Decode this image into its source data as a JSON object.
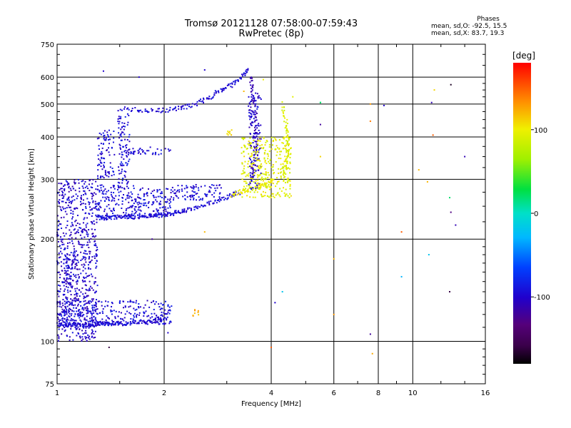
{
  "chart_data": {
    "type": "scatter",
    "title": "Tromsø 20121128 07:58:00-07:59:43",
    "subtitle": "RwPretec (8p)",
    "xlabel": "Frequency [MHz]",
    "ylabel": "Stationary phase Virtual Height [km]",
    "x_scale": "log",
    "y_scale": "log",
    "xlim": [
      1,
      16
    ],
    "ylim": [
      75,
      750
    ],
    "x_ticks": [
      1,
      2,
      4,
      6,
      8,
      10,
      16
    ],
    "x_tick_labels": [
      "1",
      "2",
      "4",
      "6",
      "8",
      "10",
      "16"
    ],
    "y_ticks": [
      75,
      100,
      200,
      300,
      400,
      500,
      600,
      750
    ],
    "y_tick_labels": [
      "75",
      "100",
      "200",
      "300",
      "400",
      "500",
      "600",
      "750"
    ],
    "grid": true,
    "stats": {
      "heading": "Phases",
      "line_o": "mean, sd,O: -92.5, 15.5",
      "line_x": "mean, sd,X: 83.7, 19.3"
    },
    "colorbar": {
      "label": "[deg]",
      "range": [
        -180,
        180
      ],
      "ticks": [
        100,
        0,
        -100
      ],
      "tick_labels": [
        "100",
        "0",
        "-100"
      ]
    },
    "traces": [
      {
        "name": "",
        "phase_deg": -95,
        "points": [
          [
            1.0,
            112
          ],
          [
            1.05,
            112
          ],
          [
            1.1,
            112
          ],
          [
            1.15,
            112
          ],
          [
            1.2,
            112
          ],
          [
            1.25,
            112
          ],
          [
            1.3,
            113
          ],
          [
            1.35,
            113
          ],
          [
            1.4,
            113
          ],
          [
            1.5,
            113
          ],
          [
            1.6,
            113
          ],
          [
            1.7,
            114
          ],
          [
            1.8,
            114
          ],
          [
            1.9,
            115
          ],
          [
            2.0,
            116
          ]
        ]
      },
      {
        "name": "",
        "phase_deg": -95,
        "points": [
          [
            1.3,
            232
          ],
          [
            1.35,
            231
          ],
          [
            1.4,
            232
          ],
          [
            1.5,
            233
          ],
          [
            1.6,
            233
          ],
          [
            1.7,
            233
          ],
          [
            1.8,
            234
          ],
          [
            1.9,
            235
          ],
          [
            2.0,
            236
          ],
          [
            2.1,
            238
          ],
          [
            2.2,
            240
          ],
          [
            2.3,
            243
          ],
          [
            2.5,
            248
          ],
          [
            2.7,
            255
          ],
          [
            2.9,
            263
          ],
          [
            3.1,
            270
          ],
          [
            3.25,
            275
          ]
        ]
      },
      {
        "name": "",
        "phase_deg": 100,
        "points": [
          [
            3.1,
            270
          ],
          [
            3.3,
            276
          ],
          [
            3.5,
            280
          ],
          [
            3.7,
            285
          ],
          [
            3.9,
            290
          ],
          [
            4.05,
            298
          ]
        ]
      },
      {
        "name": "",
        "phase_deg": -95,
        "points": [
          [
            1.5,
            485
          ],
          [
            1.7,
            480
          ],
          [
            1.9,
            478
          ],
          [
            2.1,
            482
          ],
          [
            2.3,
            490
          ],
          [
            2.5,
            505
          ],
          [
            2.7,
            525
          ],
          [
            2.9,
            550
          ],
          [
            3.1,
            570
          ],
          [
            3.3,
            600
          ],
          [
            3.45,
            640
          ]
        ]
      },
      {
        "name": "",
        "phase_deg": -110,
        "points": [
          [
            3.5,
            600
          ],
          [
            3.55,
            540
          ],
          [
            3.6,
            460
          ],
          [
            3.62,
            400
          ],
          [
            3.6,
            350
          ],
          [
            3.55,
            310
          ],
          [
            3.5,
            290
          ]
        ]
      },
      {
        "name": "",
        "phase_deg": 90,
        "points": [
          [
            4.3,
            500
          ],
          [
            4.4,
            440
          ],
          [
            4.45,
            400
          ],
          [
            4.45,
            360
          ],
          [
            4.4,
            330
          ],
          [
            4.35,
            300
          ]
        ]
      }
    ],
    "clusters": [
      {
        "phase_deg": -100,
        "x": [
          1.0,
          1.3
        ],
        "y": [
          100,
          300
        ]
      },
      {
        "phase_deg": -95,
        "x": [
          1.3,
          1.65
        ],
        "y": [
          230,
          290
        ]
      },
      {
        "phase_deg": -95,
        "x": [
          1.65,
          2.1
        ],
        "y": [
          232,
          285
        ]
      },
      {
        "phase_deg": -95,
        "x": [
          1.0,
          2.1
        ],
        "y": [
          112,
          132
        ]
      },
      {
        "phase_deg": -95,
        "x": [
          1.48,
          1.6
        ],
        "y": [
          280,
          470
        ]
      },
      {
        "phase_deg": -95,
        "x": [
          1.6,
          2.1
        ],
        "y": [
          355,
          375
        ]
      },
      {
        "phase_deg": -95,
        "x": [
          1.3,
          1.45
        ],
        "y": [
          300,
          420
        ]
      },
      {
        "phase_deg": -95,
        "x": [
          2.1,
          2.9
        ],
        "y": [
          260,
          290
        ]
      },
      {
        "phase_deg": -100,
        "x": [
          3.45,
          3.75
        ],
        "y": [
          280,
          540
        ]
      },
      {
        "phase_deg": 95,
        "x": [
          3.3,
          4.55
        ],
        "y": [
          265,
          400
        ]
      },
      {
        "phase_deg": 110,
        "x": [
          3.0,
          3.15
        ],
        "y": [
          405,
          420
        ]
      },
      {
        "phase_deg": 120,
        "x": [
          2.4,
          2.5
        ],
        "y": [
          118,
          124
        ]
      },
      {
        "phase_deg": -100,
        "x": [
          1.05,
          1.15
        ],
        "y": [
          140,
          180
        ]
      }
    ],
    "scattered": [
      {
        "x": 1.35,
        "y": 625,
        "phase_deg": -100
      },
      {
        "x": 1.7,
        "y": 600,
        "phase_deg": -100
      },
      {
        "x": 2.6,
        "y": 630,
        "phase_deg": -100
      },
      {
        "x": 5.5,
        "y": 505,
        "phase_deg": 20
      },
      {
        "x": 5.5,
        "y": 435,
        "phase_deg": -120
      },
      {
        "x": 5.5,
        "y": 350,
        "phase_deg": 110
      },
      {
        "x": 7.6,
        "y": 500,
        "phase_deg": 130
      },
      {
        "x": 7.6,
        "y": 445,
        "phase_deg": 140
      },
      {
        "x": 8.3,
        "y": 495,
        "phase_deg": -100
      },
      {
        "x": 11.5,
        "y": 550,
        "phase_deg": 110
      },
      {
        "x": 11.3,
        "y": 505,
        "phase_deg": -110
      },
      {
        "x": 12.8,
        "y": 570,
        "phase_deg": -170
      },
      {
        "x": 11.4,
        "y": 405,
        "phase_deg": 150
      },
      {
        "x": 14.0,
        "y": 350,
        "phase_deg": -110
      },
      {
        "x": 10.4,
        "y": 320,
        "phase_deg": 120
      },
      {
        "x": 11.0,
        "y": 295,
        "phase_deg": 120
      },
      {
        "x": 12.7,
        "y": 265,
        "phase_deg": 20
      },
      {
        "x": 12.8,
        "y": 240,
        "phase_deg": -130
      },
      {
        "x": 13.2,
        "y": 220,
        "phase_deg": -110
      },
      {
        "x": 9.3,
        "y": 210,
        "phase_deg": 150
      },
      {
        "x": 11.1,
        "y": 180,
        "phase_deg": -20
      },
      {
        "x": 9.3,
        "y": 155,
        "phase_deg": -30
      },
      {
        "x": 12.7,
        "y": 140,
        "phase_deg": -160
      },
      {
        "x": 6.0,
        "y": 175,
        "phase_deg": 120
      },
      {
        "x": 6.0,
        "y": 120,
        "phase_deg": 130
      },
      {
        "x": 7.6,
        "y": 105,
        "phase_deg": -120
      },
      {
        "x": 7.7,
        "y": 92,
        "phase_deg": 125
      },
      {
        "x": 4.3,
        "y": 140,
        "phase_deg": -20
      },
      {
        "x": 4.1,
        "y": 130,
        "phase_deg": -100
      },
      {
        "x": 4.0,
        "y": 96,
        "phase_deg": 150
      },
      {
        "x": 1.4,
        "y": 96,
        "phase_deg": -160
      },
      {
        "x": 2.05,
        "y": 106,
        "phase_deg": -100
      },
      {
        "x": 1.85,
        "y": 200,
        "phase_deg": -120
      },
      {
        "x": 2.6,
        "y": 210,
        "phase_deg": 120
      },
      {
        "x": 5.5,
        "y": 505,
        "phase_deg": 20
      },
      {
        "x": 4.6,
        "y": 525,
        "phase_deg": 95
      },
      {
        "x": 3.35,
        "y": 545,
        "phase_deg": 120
      },
      {
        "x": 3.8,
        "y": 590,
        "phase_deg": 100
      }
    ]
  }
}
